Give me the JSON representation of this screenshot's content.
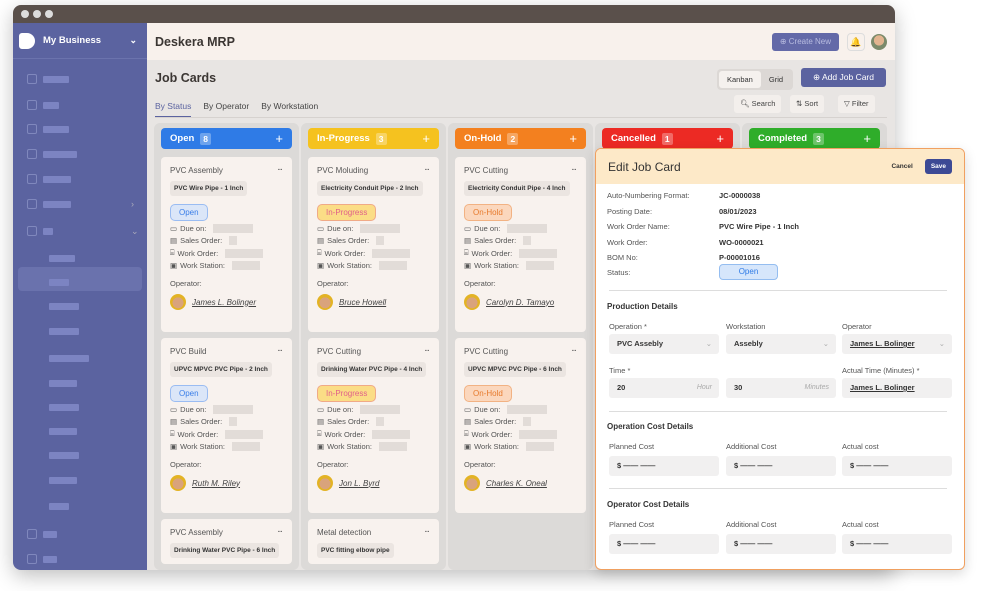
{
  "app": {
    "business": "My Business",
    "title": "Deskera MRP",
    "create_new": "Create New"
  },
  "page": {
    "title": "Job Cards",
    "views": [
      "Kanban",
      "Grid"
    ],
    "add_job_card": "Add Job Card",
    "tabs": [
      "By Status",
      "By Operator",
      "By Workstation"
    ],
    "search": "Search",
    "sort": "Sort",
    "filter": "Filter"
  },
  "columns": [
    {
      "label": "Open",
      "count": "8",
      "color": "#2f7be6",
      "badge_bg": "#dbe6f8",
      "badge_fg": "#3a7ee8",
      "cards": [
        {
          "operation": "PVC Assembly",
          "pipe": "PVC Wire Pipe - 1 Inch",
          "status": "Open",
          "operator": "James L. Bolinger"
        },
        {
          "operation": "PVC Build",
          "pipe": "UPVC MPVC PVC Pipe - 2 Inch",
          "status": "Open",
          "operator": "Ruth M. Riley"
        },
        {
          "operation": "PVC Assembly",
          "pipe": "Drinking Water PVC Pipe - 6 Inch",
          "status": "",
          "operator": ""
        }
      ]
    },
    {
      "label": "In-Progress",
      "count": "3",
      "color": "#f5c21f",
      "badge_bg": "#fbdd86",
      "badge_fg": "#e0608a",
      "cards": [
        {
          "operation": "PVC Moluding",
          "pipe": "Electricity Conduit Pipe - 2 Inch",
          "status": "In-Progress",
          "operator": "Bruce Howell"
        },
        {
          "operation": "PVC Cutting",
          "pipe": "Drinking Water PVC Pipe - 4 Inch",
          "status": "In-Progress",
          "operator": "Jon L. Byrd"
        },
        {
          "operation": "Metal detection",
          "pipe": "PVC fitting elbow pipe",
          "status": "",
          "operator": ""
        }
      ]
    },
    {
      "label": "On-Hold",
      "count": "2",
      "color": "#f3801f",
      "badge_bg": "#fbd7bd",
      "badge_fg": "#e77a2c",
      "cards": [
        {
          "operation": "PVC Cutting",
          "pipe": "Electricity Conduit Pipe - 4 Inch",
          "status": "On-Hold",
          "operator": "Carolyn D. Tamayo"
        },
        {
          "operation": "PVC Cutting",
          "pipe": "UPVC MPVC PVC Pipe - 6 Inch",
          "status": "On-Hold",
          "operator": "Charles K. Oneal"
        }
      ]
    },
    {
      "label": "Cancelled",
      "count": "1",
      "color": "#ec2a24",
      "cards": []
    },
    {
      "label": "Completed",
      "count": "3",
      "color": "#2fad2a",
      "cards": []
    }
  ],
  "card_labels": {
    "due": "Due on:",
    "sales": "Sales Order:",
    "work": "Work Order:",
    "station": "Work Station:",
    "operator": "Operator:"
  },
  "edit": {
    "title": "Edit Job Card",
    "cancel": "Cancel",
    "save": "Save",
    "fields": [
      {
        "label": "Auto-Numbering Format:",
        "value": "JC-0000038"
      },
      {
        "label": "Posting Date:",
        "value": "08/01/2023"
      },
      {
        "label": "Work Order Name:",
        "value": "PVC Wire Pipe - 1 Inch"
      },
      {
        "label": "Work Order:",
        "value": "WO-0000021"
      },
      {
        "label": "BOM No:",
        "value": "P-00001016"
      }
    ],
    "status_label": "Status:",
    "status": "Open",
    "production": {
      "title": "Production Details",
      "operation_label": "Operation *",
      "operation": "PVC Assebly",
      "workstation_label": "Workstation",
      "workstation": "Assebly",
      "operator_label": "Operator",
      "operator": "James L. Bolinger",
      "time_label": "Time *",
      "hours": "20",
      "hour_unit": "Hour",
      "minutes": "30",
      "minute_unit": "Minutes",
      "actual_label": "Actual Time (Minutes) *",
      "actual": "James L. Bolinger"
    },
    "op_cost": {
      "title": "Operation Cost Details",
      "planned": "Planned Cost",
      "additional": "Additional Cost",
      "actual": "Actual cost",
      "value": "$ —— ——"
    },
    "operator_cost": {
      "title": "Operator Cost Details",
      "planned": "Planned Cost",
      "additional": "Additional Cost",
      "actual": "Actual cost",
      "value": "$ —— ——"
    }
  }
}
